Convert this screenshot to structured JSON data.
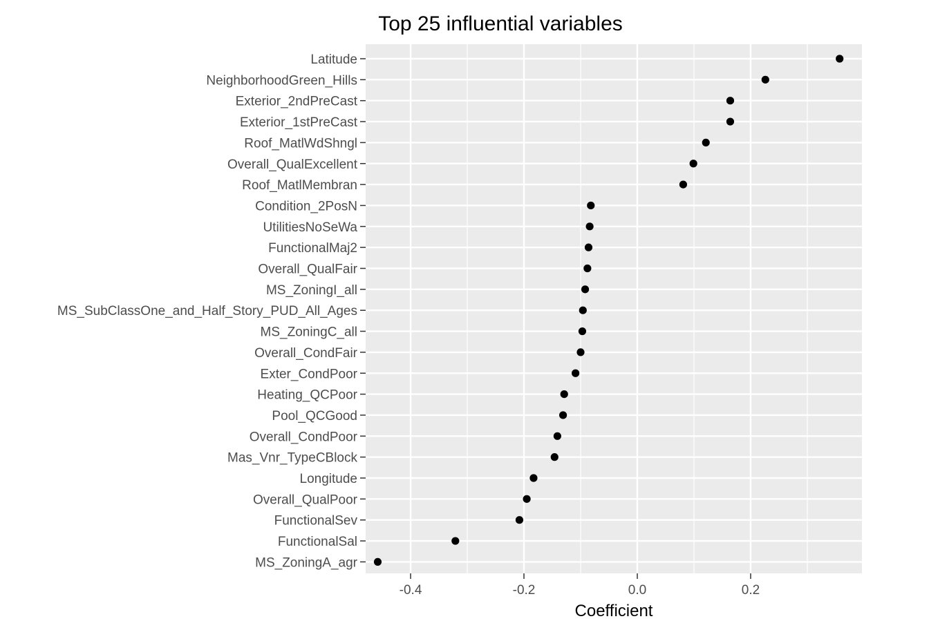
{
  "chart_data": {
    "type": "scatter",
    "title": "Top 25 influential variables",
    "xlabel": "Coefficient",
    "ylabel": "",
    "xlim": [
      -0.4793,
      0.3964
    ],
    "x_ticks": [
      -0.4,
      -0.2,
      0.0,
      0.2
    ],
    "x_tick_labels": [
      "-0.4",
      "-0.2",
      "0.0",
      "0.2"
    ],
    "grid": true,
    "legend": "none",
    "colors": {
      "panel": "#ebebeb",
      "grid": "#ffffff",
      "point": "#000000"
    },
    "points": [
      {
        "label": "Latitude",
        "value": 0.357
      },
      {
        "label": "NeighborhoodGreen_Hills",
        "value": 0.226
      },
      {
        "label": "Exterior_2ndPreCast",
        "value": 0.164
      },
      {
        "label": "Exterior_1stPreCast",
        "value": 0.164
      },
      {
        "label": "Roof_MatlWdShngl",
        "value": 0.121
      },
      {
        "label": "Overall_QualExcellent",
        "value": 0.099
      },
      {
        "label": "Roof_MatlMembran",
        "value": 0.081
      },
      {
        "label": "Condition_2PosN",
        "value": -0.082
      },
      {
        "label": "UtilitiesNoSeWa",
        "value": -0.084
      },
      {
        "label": "FunctionalMaj2",
        "value": -0.086
      },
      {
        "label": "Overall_QualFair",
        "value": -0.088
      },
      {
        "label": "MS_ZoningI_all",
        "value": -0.092
      },
      {
        "label": "MS_SubClassOne_and_Half_Story_PUD_All_Ages",
        "value": -0.096
      },
      {
        "label": "MS_ZoningC_all",
        "value": -0.097
      },
      {
        "label": "Overall_CondFair",
        "value": -0.1
      },
      {
        "label": "Exter_CondPoor",
        "value": -0.109
      },
      {
        "label": "Heating_QCPoor",
        "value": -0.129
      },
      {
        "label": "Pool_QCGood",
        "value": -0.131
      },
      {
        "label": "Overall_CondPoor",
        "value": -0.141
      },
      {
        "label": "Mas_Vnr_TypeCBlock",
        "value": -0.146
      },
      {
        "label": "Longitude",
        "value": -0.183
      },
      {
        "label": "Overall_QualPoor",
        "value": -0.195
      },
      {
        "label": "FunctionalSev",
        "value": -0.208
      },
      {
        "label": "FunctionalSal",
        "value": -0.321
      },
      {
        "label": "MS_ZoningA_agr",
        "value": -0.458
      }
    ]
  }
}
